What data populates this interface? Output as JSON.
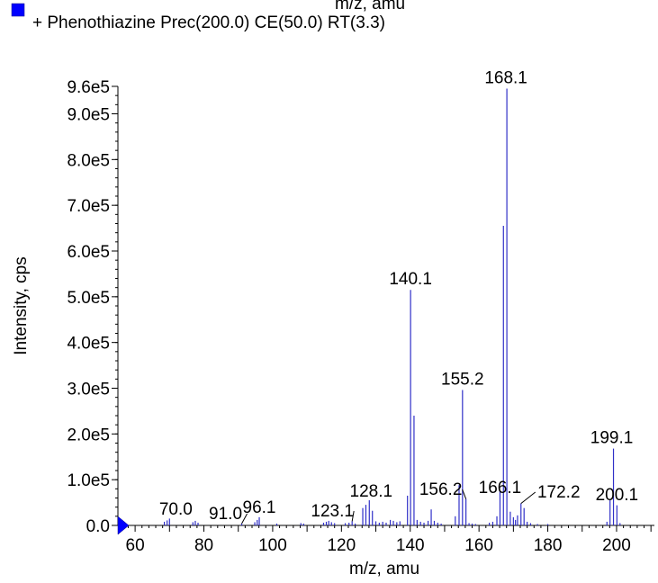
{
  "header": {
    "cut_text": "m/z, amu",
    "legend_marker_color": "#0000ff",
    "legend_label": "+ Phenothiazine  Prec(200.0) CE(50.0) RT(3.3)"
  },
  "chart_data": {
    "type": "bar",
    "xlabel": "m/z, amu",
    "ylabel": "Intensity, cps",
    "xlim": [
      55,
      211
    ],
    "ylim": [
      0,
      960000
    ],
    "x_ticks": [
      60,
      80,
      100,
      120,
      140,
      160,
      180,
      200
    ],
    "y_ticks": [
      {
        "value": 0,
        "label": "0.0"
      },
      {
        "value": 100000,
        "label": "1.0e5"
      },
      {
        "value": 200000,
        "label": "2.0e5"
      },
      {
        "value": 300000,
        "label": "3.0e5"
      },
      {
        "value": 400000,
        "label": "4.0e5"
      },
      {
        "value": 500000,
        "label": "5.0e5"
      },
      {
        "value": 600000,
        "label": "6.0e5"
      },
      {
        "value": 700000,
        "label": "7.0e5"
      },
      {
        "value": 800000,
        "label": "8.0e5"
      },
      {
        "value": 900000,
        "label": "9.0e5"
      },
      {
        "value": 960000,
        "label": "9.6e5"
      }
    ],
    "line_color": "#3030c8",
    "peaks": [
      {
        "x": 68.5,
        "y": 8000
      },
      {
        "x": 69.3,
        "y": 11000
      },
      {
        "x": 70.0,
        "y": 15000
      },
      {
        "x": 76.8,
        "y": 7000
      },
      {
        "x": 77.5,
        "y": 10000
      },
      {
        "x": 78.3,
        "y": 6000
      },
      {
        "x": 91.0,
        "y": 4000
      },
      {
        "x": 94.8,
        "y": 7000
      },
      {
        "x": 95.5,
        "y": 12000
      },
      {
        "x": 96.1,
        "y": 18000
      },
      {
        "x": 101.2,
        "y": 4000
      },
      {
        "x": 108.2,
        "y": 5000
      },
      {
        "x": 109.0,
        "y": 4000
      },
      {
        "x": 114.8,
        "y": 6000
      },
      {
        "x": 115.6,
        "y": 8000
      },
      {
        "x": 116.3,
        "y": 10000
      },
      {
        "x": 117.1,
        "y": 7000
      },
      {
        "x": 118.0,
        "y": 5000
      },
      {
        "x": 121.1,
        "y": 5000
      },
      {
        "x": 122.2,
        "y": 6000
      },
      {
        "x": 123.1,
        "y": 9000
      },
      {
        "x": 124.0,
        "y": 4000
      },
      {
        "x": 126.2,
        "y": 38000
      },
      {
        "x": 127.1,
        "y": 45000
      },
      {
        "x": 128.1,
        "y": 55000
      },
      {
        "x": 129.0,
        "y": 32000
      },
      {
        "x": 130.0,
        "y": 9000
      },
      {
        "x": 131.0,
        "y": 6000
      },
      {
        "x": 132.0,
        "y": 8000
      },
      {
        "x": 133.0,
        "y": 6000
      },
      {
        "x": 134.2,
        "y": 12000
      },
      {
        "x": 135.1,
        "y": 10000
      },
      {
        "x": 136.1,
        "y": 7000
      },
      {
        "x": 137.0,
        "y": 9000
      },
      {
        "x": 139.2,
        "y": 65000
      },
      {
        "x": 140.1,
        "y": 515000
      },
      {
        "x": 141.1,
        "y": 240000
      },
      {
        "x": 142.0,
        "y": 12000
      },
      {
        "x": 143.0,
        "y": 8000
      },
      {
        "x": 144.0,
        "y": 6000
      },
      {
        "x": 145.2,
        "y": 10000
      },
      {
        "x": 146.1,
        "y": 35000
      },
      {
        "x": 147.0,
        "y": 10000
      },
      {
        "x": 148.0,
        "y": 6000
      },
      {
        "x": 149.0,
        "y": 4000
      },
      {
        "x": 153.1,
        "y": 20000
      },
      {
        "x": 154.2,
        "y": 88000
      },
      {
        "x": 155.2,
        "y": 296000
      },
      {
        "x": 156.2,
        "y": 58000
      },
      {
        "x": 157.1,
        "y": 5000
      },
      {
        "x": 158.0,
        "y": 4000
      },
      {
        "x": 159.0,
        "y": 3000
      },
      {
        "x": 163.0,
        "y": 6000
      },
      {
        "x": 164.0,
        "y": 8000
      },
      {
        "x": 165.2,
        "y": 20000
      },
      {
        "x": 166.1,
        "y": 75000
      },
      {
        "x": 167.1,
        "y": 655000
      },
      {
        "x": 168.1,
        "y": 955000
      },
      {
        "x": 169.1,
        "y": 30000
      },
      {
        "x": 170.0,
        "y": 18000
      },
      {
        "x": 170.6,
        "y": 12000
      },
      {
        "x": 171.2,
        "y": 22000
      },
      {
        "x": 172.2,
        "y": 48000
      },
      {
        "x": 173.1,
        "y": 38000
      },
      {
        "x": 174.0,
        "y": 8000
      },
      {
        "x": 175.0,
        "y": 5000
      },
      {
        "x": 177.0,
        "y": 3000
      },
      {
        "x": 180.0,
        "y": 3000
      },
      {
        "x": 197.2,
        "y": 8000
      },
      {
        "x": 198.1,
        "y": 55000
      },
      {
        "x": 199.1,
        "y": 168000
      },
      {
        "x": 200.1,
        "y": 44000
      },
      {
        "x": 201.0,
        "y": 5000
      }
    ],
    "annotations": [
      {
        "label": "168.1",
        "x": 168.1,
        "y": 955000
      },
      {
        "label": "140.1",
        "x": 140.1,
        "y": 515000
      },
      {
        "label": "155.2",
        "x": 155.2,
        "y": 296000
      },
      {
        "label": "199.1",
        "x": 199.1,
        "y": 168000
      },
      {
        "label": "166.1",
        "x": 166.1,
        "y": 75000
      },
      {
        "label": "156.2",
        "x": 156.2,
        "y": 58000
      },
      {
        "label": "128.1",
        "x": 128.1,
        "y": 55000
      },
      {
        "label": "172.2",
        "x": 172.2,
        "y": 48000
      },
      {
        "label": "200.1",
        "x": 200.1,
        "y": 44000
      },
      {
        "label": "96.1",
        "x": 96.1,
        "y": 18000
      },
      {
        "label": "70.0",
        "x": 70.0,
        "y": 15000
      },
      {
        "label": "91.0",
        "x": 91.0,
        "y": 4000
      },
      {
        "label": "123.1",
        "x": 123.1,
        "y": 9000
      }
    ]
  }
}
